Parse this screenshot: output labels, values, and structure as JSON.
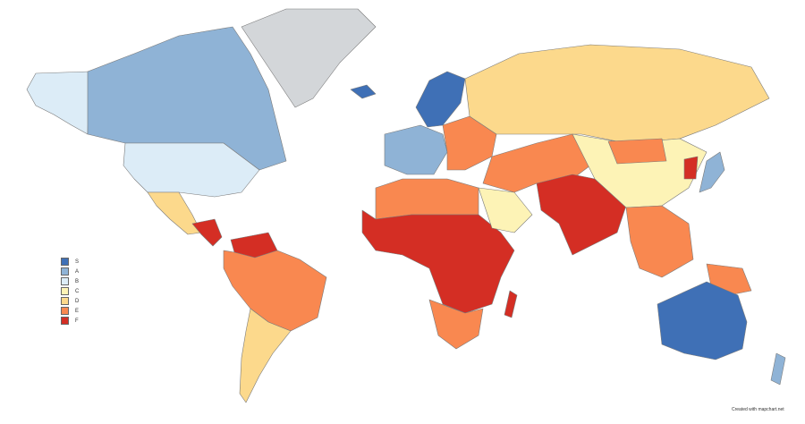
{
  "colors": {
    "S": "#3f70b6",
    "A": "#8fb3d6",
    "B": "#dcecf7",
    "C": "#fdf3b6",
    "D": "#fcd98c",
    "E": "#f98850",
    "F": "#d42e24",
    "none": "#d3d6d9"
  },
  "legend": {
    "items": [
      {
        "label": "S",
        "color": "#3f70b6"
      },
      {
        "label": "A",
        "color": "#8fb3d6"
      },
      {
        "label": "B",
        "color": "#dcecf7"
      },
      {
        "label": "C",
        "color": "#fdf3b6"
      },
      {
        "label": "D",
        "color": "#fcd98c"
      },
      {
        "label": "E",
        "color": "#f98850"
      },
      {
        "label": "F",
        "color": "#d42e24"
      }
    ]
  },
  "credit": "Created with mapchart.net",
  "regions": [
    {
      "name": "alaska",
      "tier": "B"
    },
    {
      "name": "canada",
      "tier": "A"
    },
    {
      "name": "greenland",
      "tier": "none"
    },
    {
      "name": "usa",
      "tier": "B"
    },
    {
      "name": "mexico",
      "tier": "D"
    },
    {
      "name": "central-america",
      "tier": "F"
    },
    {
      "name": "venezuela",
      "tier": "F"
    },
    {
      "name": "south-america",
      "tier": "E"
    },
    {
      "name": "southern-cone",
      "tier": "D"
    },
    {
      "name": "iceland",
      "tier": "S"
    },
    {
      "name": "scandinavia",
      "tier": "S"
    },
    {
      "name": "western-europe",
      "tier": "A"
    },
    {
      "name": "eastern-europe",
      "tier": "E"
    },
    {
      "name": "russia",
      "tier": "D"
    },
    {
      "name": "north-africa",
      "tier": "E"
    },
    {
      "name": "sub-saharan-africa",
      "tier": "F"
    },
    {
      "name": "southern-africa",
      "tier": "E"
    },
    {
      "name": "madagascar",
      "tier": "F"
    },
    {
      "name": "arabia",
      "tier": "C"
    },
    {
      "name": "middle-east",
      "tier": "E"
    },
    {
      "name": "south-asia",
      "tier": "F"
    },
    {
      "name": "china",
      "tier": "C"
    },
    {
      "name": "mongolia",
      "tier": "E"
    },
    {
      "name": "japan",
      "tier": "A"
    },
    {
      "name": "korea",
      "tier": "F"
    },
    {
      "name": "southeast-asia",
      "tier": "E"
    },
    {
      "name": "papua",
      "tier": "E"
    },
    {
      "name": "australia",
      "tier": "S"
    },
    {
      "name": "new-zealand",
      "tier": "A"
    }
  ]
}
